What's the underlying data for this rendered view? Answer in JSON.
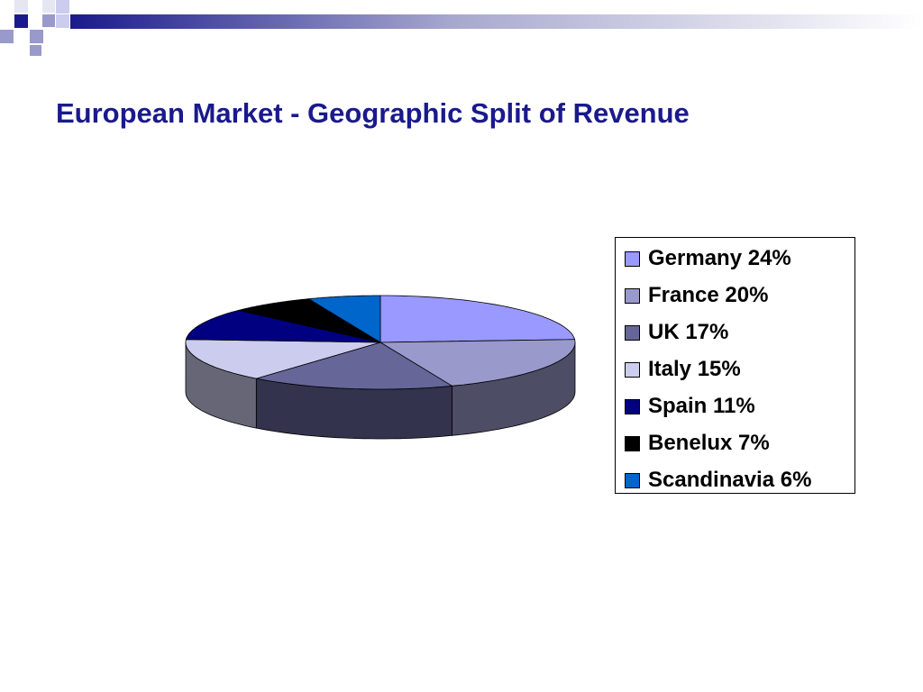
{
  "slide": {
    "title": "European Market - Geographic Split of Revenue"
  },
  "chart_data": {
    "type": "pie",
    "style": "3d",
    "legend_position": "right",
    "slices": [
      {
        "label": "Germany",
        "value": 24,
        "color": "#9999ff"
      },
      {
        "label": "France",
        "value": 20,
        "color": "#9999cc"
      },
      {
        "label": "UK",
        "value": 17,
        "color": "#666699"
      },
      {
        "label": "Italy",
        "value": 15,
        "color": "#ccccee"
      },
      {
        "label": "Spain",
        "value": 11,
        "color": "#000080"
      },
      {
        "label": "Benelux",
        "value": 7,
        "color": "#000000"
      },
      {
        "label": "Scandinavia",
        "value": 6,
        "color": "#0066cc"
      }
    ],
    "legend_entries": [
      "Germany 24%",
      "France 20%",
      "UK 17%",
      "Italy 15%",
      "Spain 11%",
      "Benelux 7%",
      "Scandinavia 6%"
    ]
  },
  "colors": {
    "title": "#1a1a8c",
    "decor_dark": "#1a1a8c",
    "decor_light": "#9999cc"
  }
}
